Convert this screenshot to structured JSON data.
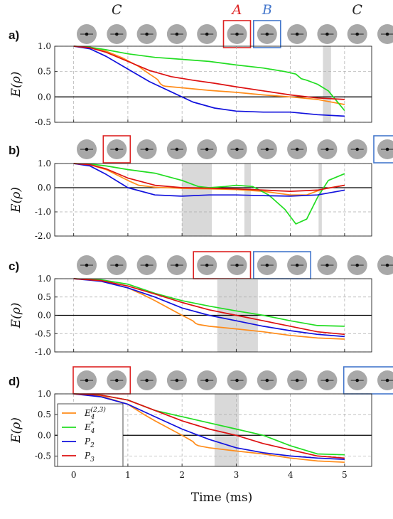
{
  "header_labels": [
    {
      "text": "C",
      "color": "#222222",
      "box": 1
    },
    {
      "text": "A",
      "color": "#dd2222",
      "box": 5
    },
    {
      "text": "B",
      "color": "#4477cc",
      "box": 6
    },
    {
      "text": "C",
      "color": "#222222",
      "box": 9
    }
  ],
  "colors": {
    "E23": "#ff8c1a",
    "Estar": "#22dd22",
    "P2": "#1111dd",
    "P3": "#dd1111",
    "shade": "#d9d9d9",
    "circle": "#a8a8a8",
    "box_red": "#dd2222",
    "box_blue": "#4477cc"
  },
  "xlabel": "Time (ms)",
  "ylabel": "E(ρ)",
  "legend": [
    {
      "key": "E23",
      "label": "E",
      "sub": "4",
      "sup": "(2,3)"
    },
    {
      "key": "Estar",
      "label": "E",
      "sub": "4",
      "sup": "*"
    },
    {
      "key": "P2",
      "label": "P",
      "sub": "2",
      "sup": ""
    },
    {
      "key": "P3",
      "label": "P",
      "sub": "3",
      "sup": ""
    }
  ],
  "chart_data": [
    {
      "panel": "a)",
      "type": "line",
      "xlim": [
        -0.35,
        5.5
      ],
      "ylim": [
        -0.5,
        1.0
      ],
      "xticks": [
        0,
        1,
        2,
        3,
        4,
        5
      ],
      "yticks": [
        -0.5,
        0.0,
        0.5,
        1.0
      ],
      "ytick_labels": [
        "-0.5",
        "0.0",
        "0.5",
        "1.0"
      ],
      "show_xtick_labels": false,
      "shaded_x": [
        [
          4.6,
          4.75
        ]
      ],
      "red_boxes": [
        [
          5,
          5
        ]
      ],
      "blue_boxes": [
        [
          6,
          6
        ]
      ],
      "series": [
        {
          "name": "E_4^(2,3)",
          "key": "E23",
          "x": [
            0,
            0.3,
            0.6,
            0.9,
            1.2,
            1.4,
            1.5,
            1.55,
            1.6,
            1.65,
            1.7,
            2.0,
            2.5,
            3.0,
            3.5,
            4.0,
            4.5,
            5.0
          ],
          "y": [
            1.0,
            0.98,
            0.9,
            0.77,
            0.6,
            0.45,
            0.38,
            0.34,
            0.26,
            0.22,
            0.21,
            0.18,
            0.13,
            0.09,
            0.04,
            0.0,
            -0.05,
            -0.15
          ]
        },
        {
          "name": "E_4^*",
          "key": "Estar",
          "x": [
            0,
            0.3,
            0.6,
            1.0,
            1.5,
            2.0,
            2.5,
            3.0,
            3.5,
            3.9,
            4.1,
            4.2,
            4.3,
            4.5,
            4.7,
            5.0
          ],
          "y": [
            1.0,
            0.98,
            0.93,
            0.85,
            0.78,
            0.74,
            0.7,
            0.63,
            0.57,
            0.5,
            0.45,
            0.36,
            0.33,
            0.25,
            0.12,
            -0.27
          ]
        },
        {
          "name": "P_2",
          "key": "P2",
          "x": [
            0,
            0.3,
            0.6,
            1.0,
            1.4,
            1.8,
            2.2,
            2.6,
            3.0,
            3.5,
            4.0,
            4.5,
            5.0
          ],
          "y": [
            1.0,
            0.95,
            0.8,
            0.55,
            0.3,
            0.1,
            -0.1,
            -0.22,
            -0.28,
            -0.3,
            -0.3,
            -0.35,
            -0.38
          ]
        },
        {
          "name": "P_3",
          "key": "P3",
          "x": [
            0,
            0.3,
            0.6,
            1.0,
            1.4,
            1.8,
            2.2,
            2.6,
            3.0,
            3.5,
            4.0,
            4.5,
            5.0
          ],
          "y": [
            1.0,
            0.97,
            0.88,
            0.7,
            0.52,
            0.4,
            0.33,
            0.27,
            0.2,
            0.12,
            0.04,
            -0.02,
            -0.05
          ]
        }
      ]
    },
    {
      "panel": "b)",
      "type": "line",
      "xlim": [
        -0.35,
        5.5
      ],
      "ylim": [
        -2.0,
        1.0
      ],
      "xticks": [
        0,
        1,
        2,
        3,
        4,
        5
      ],
      "yticks": [
        -2.0,
        -1.0,
        0.0,
        1.0
      ],
      "ytick_labels": [
        "-2.0",
        "-1.0",
        "0.0",
        "1.0"
      ],
      "show_xtick_labels": false,
      "shaded_x": [
        [
          2.0,
          2.55
        ],
        [
          3.15,
          3.27
        ],
        [
          4.52,
          4.58
        ]
      ],
      "red_boxes": [
        [
          1,
          1
        ]
      ],
      "blue_boxes": [
        [
          10,
          10
        ]
      ],
      "series": [
        {
          "name": "E_4^(2,3)",
          "key": "E23",
          "x": [
            0,
            0.3,
            0.6,
            1.0,
            1.1,
            1.2,
            1.5,
            2.0,
            2.5,
            3.0,
            3.5,
            4.0,
            4.3,
            4.6,
            5.0
          ],
          "y": [
            1.0,
            0.95,
            0.75,
            0.3,
            0.2,
            0.1,
            0.02,
            -0.03,
            -0.05,
            -0.08,
            -0.15,
            -0.3,
            -0.3,
            -0.05,
            0.1
          ]
        },
        {
          "name": "E_4^*",
          "key": "Estar",
          "x": [
            0,
            0.3,
            0.6,
            1.0,
            1.5,
            2.0,
            2.3,
            2.5,
            2.8,
            3.0,
            3.3,
            3.6,
            3.9,
            4.1,
            4.3,
            4.5,
            4.7,
            5.0
          ],
          "y": [
            1.0,
            0.98,
            0.9,
            0.75,
            0.6,
            0.3,
            0.05,
            0.0,
            0.05,
            0.1,
            0.05,
            -0.3,
            -0.9,
            -1.5,
            -1.3,
            -0.4,
            0.3,
            0.58
          ]
        },
        {
          "name": "P_2",
          "key": "P2",
          "x": [
            0,
            0.3,
            0.6,
            1.0,
            1.5,
            2.0,
            2.5,
            3.0,
            3.5,
            4.0,
            4.5,
            5.0
          ],
          "y": [
            1.0,
            0.9,
            0.55,
            0.0,
            -0.3,
            -0.35,
            -0.3,
            -0.3,
            -0.33,
            -0.35,
            -0.3,
            -0.1
          ]
        },
        {
          "name": "P_3",
          "key": "P3",
          "x": [
            0,
            0.3,
            0.6,
            1.0,
            1.5,
            2.0,
            2.5,
            3.0,
            3.5,
            4.0,
            4.5,
            5.0
          ],
          "y": [
            1.0,
            0.95,
            0.78,
            0.4,
            0.1,
            0.0,
            -0.02,
            -0.05,
            -0.1,
            -0.15,
            -0.1,
            0.1
          ]
        }
      ]
    },
    {
      "panel": "c)",
      "type": "line",
      "xlim": [
        -0.35,
        5.5
      ],
      "ylim": [
        -1.0,
        1.0
      ],
      "xticks": [
        0,
        1,
        2,
        3,
        4,
        5
      ],
      "yticks": [
        -1.0,
        -0.5,
        0.0,
        0.5,
        1.0
      ],
      "ytick_labels": [
        "-1.0",
        "-0.5",
        "0.0",
        "0.5",
        "1.0"
      ],
      "show_xtick_labels": false,
      "shaded_x": [
        [
          2.65,
          3.4
        ]
      ],
      "red_boxes": [
        [
          4,
          5
        ]
      ],
      "blue_boxes": [
        [
          6,
          7
        ]
      ],
      "series": [
        {
          "name": "E_4^(2,3)",
          "key": "E23",
          "x": [
            0,
            0.5,
            1.0,
            1.3,
            1.5,
            2.0,
            2.2,
            2.25,
            2.3,
            2.5,
            3.0,
            3.5,
            4.0,
            4.5,
            5.0
          ],
          "y": [
            1.0,
            0.95,
            0.75,
            0.55,
            0.4,
            0.0,
            -0.15,
            -0.22,
            -0.25,
            -0.3,
            -0.37,
            -0.45,
            -0.55,
            -0.62,
            -0.65
          ]
        },
        {
          "name": "E_4^*",
          "key": "Estar",
          "x": [
            0,
            0.5,
            1.0,
            1.5,
            2.0,
            2.5,
            3.0,
            3.5,
            4.0,
            4.5,
            5.0
          ],
          "y": [
            1.0,
            0.97,
            0.85,
            0.6,
            0.4,
            0.25,
            0.12,
            0.0,
            -0.15,
            -0.28,
            -0.3
          ]
        },
        {
          "name": "P_2",
          "key": "P2",
          "x": [
            0,
            0.5,
            1.0,
            1.5,
            2.0,
            2.5,
            3.0,
            3.5,
            4.0,
            4.5,
            5.0
          ],
          "y": [
            1.0,
            0.93,
            0.75,
            0.5,
            0.2,
            0.0,
            -0.15,
            -0.3,
            -0.42,
            -0.52,
            -0.58
          ]
        },
        {
          "name": "P_3",
          "key": "P3",
          "x": [
            0,
            0.5,
            1.0,
            1.5,
            2.0,
            2.5,
            3.0,
            3.5,
            4.0,
            4.5,
            5.0
          ],
          "y": [
            1.0,
            0.95,
            0.8,
            0.58,
            0.35,
            0.15,
            0.0,
            -0.15,
            -0.3,
            -0.45,
            -0.52
          ]
        }
      ]
    },
    {
      "panel": "d)",
      "type": "line",
      "xlim": [
        -0.35,
        5.5
      ],
      "ylim": [
        -0.75,
        1.0
      ],
      "xticks": [
        0,
        1,
        2,
        3,
        4,
        5
      ],
      "yticks": [
        -0.5,
        0.0,
        0.5,
        1.0
      ],
      "ytick_labels": [
        "-0.5",
        "0.0",
        "0.5",
        "1.0"
      ],
      "show_xtick_labels": true,
      "shaded_x": [
        [
          2.6,
          3.05
        ]
      ],
      "red_boxes": [
        [
          0,
          1
        ]
      ],
      "blue_boxes": [
        [
          9,
          10
        ]
      ],
      "legend": true,
      "series": [
        {
          "name": "E_4^(2,3)",
          "key": "E23",
          "x": [
            0,
            0.5,
            1.0,
            1.3,
            1.5,
            2.0,
            2.2,
            2.25,
            2.3,
            2.5,
            3.0,
            3.5,
            4.0,
            4.5,
            5.0
          ],
          "y": [
            1.0,
            0.95,
            0.75,
            0.5,
            0.35,
            0.0,
            -0.15,
            -0.22,
            -0.25,
            -0.3,
            -0.38,
            -0.45,
            -0.55,
            -0.62,
            -0.65
          ]
        },
        {
          "name": "E_4^*",
          "key": "Estar",
          "x": [
            0,
            0.5,
            1.0,
            1.5,
            2.0,
            2.5,
            3.0,
            3.5,
            4.0,
            4.5,
            5.0
          ],
          "y": [
            1.0,
            0.97,
            0.85,
            0.6,
            0.45,
            0.3,
            0.15,
            0.0,
            -0.25,
            -0.45,
            -0.47
          ]
        },
        {
          "name": "P_2",
          "key": "P2",
          "x": [
            0,
            0.5,
            1.0,
            1.5,
            2.0,
            2.5,
            3.0,
            3.5,
            4.0,
            4.5,
            5.0
          ],
          "y": [
            1.0,
            0.93,
            0.75,
            0.45,
            0.15,
            -0.1,
            -0.3,
            -0.42,
            -0.5,
            -0.55,
            -0.58
          ]
        },
        {
          "name": "P_3",
          "key": "P3",
          "x": [
            0,
            0.5,
            1.0,
            1.5,
            2.0,
            2.5,
            3.0,
            3.5,
            4.0,
            4.5,
            5.0
          ],
          "y": [
            1.0,
            0.97,
            0.85,
            0.6,
            0.35,
            0.15,
            0.0,
            -0.2,
            -0.35,
            -0.5,
            -0.55
          ]
        }
      ]
    }
  ]
}
